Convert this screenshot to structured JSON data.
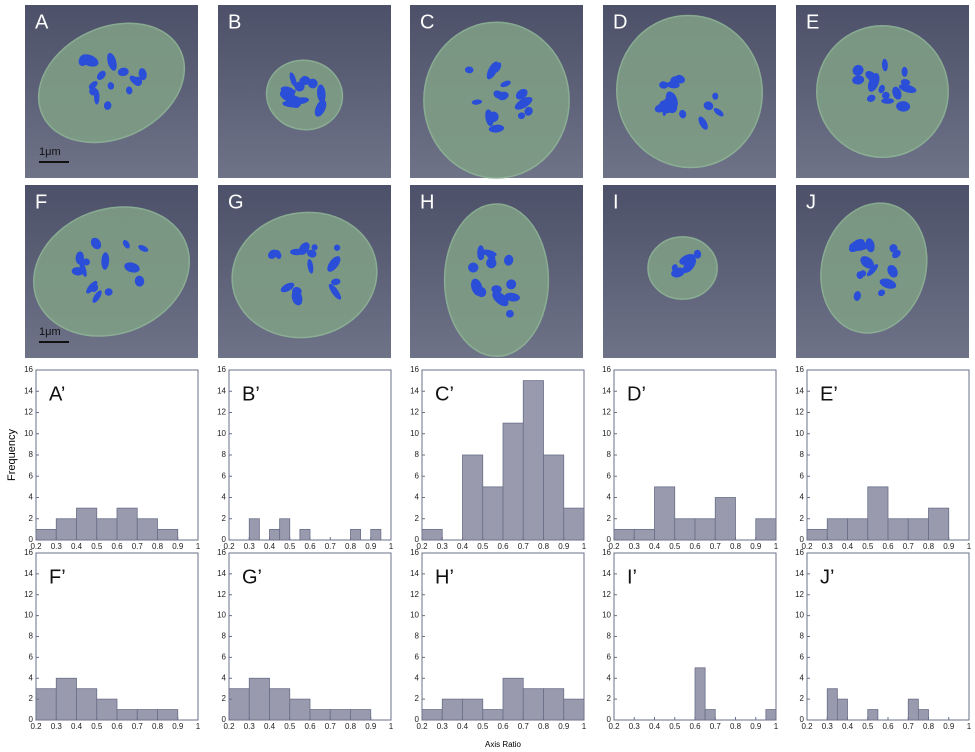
{
  "images": [
    {
      "label": "A",
      "scale_bar": "1μm"
    },
    {
      "label": "B"
    },
    {
      "label": "C"
    },
    {
      "label": "D"
    },
    {
      "label": "E"
    },
    {
      "label": "F",
      "scale_bar": "1μm"
    },
    {
      "label": "G"
    },
    {
      "label": "H"
    },
    {
      "label": "I"
    },
    {
      "label": "J"
    }
  ],
  "chart_data": [
    {
      "type": "histogram",
      "title": "A’",
      "y_label": "Frequency",
      "bins": [
        0.2,
        0.3,
        0.4,
        0.5,
        0.6,
        0.7,
        0.8,
        0.9,
        1
      ],
      "values": [
        1,
        2,
        3,
        2,
        3,
        2,
        1,
        0
      ],
      "color": "#9a9aae",
      "xlim": [
        0.2,
        1
      ],
      "ylim": [
        0,
        16
      ],
      "xticks": [
        0.2,
        0.3,
        0.4,
        0.5,
        0.6,
        0.7,
        0.8,
        0.9,
        1
      ],
      "yticks": [
        0,
        2,
        4,
        6,
        8,
        10,
        12,
        14,
        16
      ]
    },
    {
      "type": "histogram",
      "title": "B’",
      "bins": [
        0.2,
        0.25,
        0.3,
        0.35,
        0.4,
        0.45,
        0.5,
        0.55,
        0.6,
        0.65,
        0.7,
        0.75,
        0.8,
        0.85,
        0.9,
        0.95,
        1
      ],
      "values": [
        0,
        0,
        2,
        0,
        1,
        2,
        0,
        1,
        0,
        0,
        0,
        0,
        1,
        0,
        1,
        0
      ],
      "color": "#9a9aae",
      "xlim": [
        0.2,
        1
      ],
      "ylim": [
        0,
        16
      ],
      "xticks": [
        0.2,
        0.3,
        0.4,
        0.5,
        0.6,
        0.7,
        0.8,
        0.9,
        1
      ],
      "yticks": [
        0,
        2,
        4,
        6,
        8,
        10,
        12,
        14,
        16
      ]
    },
    {
      "type": "histogram",
      "title": "C’",
      "bins": [
        0.2,
        0.3,
        0.4,
        0.5,
        0.6,
        0.7,
        0.8,
        0.9,
        1
      ],
      "values": [
        1,
        0,
        8,
        5,
        11,
        15,
        8,
        3
      ],
      "color": "#9a9aae",
      "xlim": [
        0.2,
        1
      ],
      "ylim": [
        0,
        16
      ],
      "xticks": [
        0.2,
        0.3,
        0.4,
        0.5,
        0.6,
        0.7,
        0.8,
        0.9,
        1
      ],
      "yticks": [
        0,
        2,
        4,
        6,
        8,
        10,
        12,
        14,
        16
      ]
    },
    {
      "type": "histogram",
      "title": "D’",
      "bins": [
        0.2,
        0.3,
        0.4,
        0.5,
        0.6,
        0.7,
        0.8,
        0.9,
        1
      ],
      "values": [
        1,
        1,
        5,
        2,
        2,
        4,
        0,
        2
      ],
      "color": "#9a9aae",
      "xlim": [
        0.2,
        1
      ],
      "ylim": [
        0,
        16
      ],
      "xticks": [
        0.2,
        0.3,
        0.4,
        0.5,
        0.6,
        0.7,
        0.8,
        0.9,
        1
      ],
      "yticks": [
        0,
        2,
        4,
        6,
        8,
        10,
        12,
        14,
        16
      ]
    },
    {
      "type": "histogram",
      "title": "E’",
      "bins": [
        0.2,
        0.3,
        0.4,
        0.5,
        0.6,
        0.7,
        0.8,
        0.9,
        1
      ],
      "values": [
        1,
        2,
        2,
        5,
        2,
        2,
        3,
        0
      ],
      "color": "#9a9aae",
      "xlim": [
        0.2,
        1
      ],
      "ylim": [
        0,
        16
      ],
      "xticks": [
        0.2,
        0.3,
        0.4,
        0.5,
        0.6,
        0.7,
        0.8,
        0.9,
        1
      ],
      "yticks": [
        0,
        2,
        4,
        6,
        8,
        10,
        12,
        14,
        16
      ]
    },
    {
      "type": "histogram",
      "title": "F’",
      "bins": [
        0.2,
        0.3,
        0.4,
        0.5,
        0.6,
        0.7,
        0.8,
        0.9,
        1
      ],
      "values": [
        3,
        4,
        3,
        2,
        1,
        1,
        1,
        0
      ],
      "color": "#9a9aae",
      "xlim": [
        0.2,
        1
      ],
      "ylim": [
        0,
        16
      ],
      "xticks": [
        0.2,
        0.3,
        0.4,
        0.5,
        0.6,
        0.7,
        0.8,
        0.9,
        1
      ],
      "yticks": [
        0,
        2,
        4,
        6,
        8,
        10,
        12,
        14,
        16
      ]
    },
    {
      "type": "histogram",
      "title": "G’",
      "bins": [
        0.2,
        0.3,
        0.4,
        0.5,
        0.6,
        0.7,
        0.8,
        0.9,
        1
      ],
      "values": [
        3,
        4,
        3,
        2,
        1,
        1,
        1,
        0
      ],
      "color": "#9a9aae",
      "xlim": [
        0.2,
        1
      ],
      "ylim": [
        0,
        16
      ],
      "xticks": [
        0.2,
        0.3,
        0.4,
        0.5,
        0.6,
        0.7,
        0.8,
        0.9,
        1
      ],
      "yticks": [
        0,
        2,
        4,
        6,
        8,
        10,
        12,
        14,
        16
      ]
    },
    {
      "type": "histogram",
      "title": "H’",
      "x_label": "Axis Ratio",
      "bins": [
        0.2,
        0.3,
        0.4,
        0.5,
        0.6,
        0.7,
        0.8,
        0.9,
        1
      ],
      "values": [
        1,
        2,
        2,
        1,
        4,
        3,
        3,
        2
      ],
      "color": "#9a9aae",
      "xlim": [
        0.2,
        1
      ],
      "ylim": [
        0,
        16
      ],
      "xticks": [
        0.2,
        0.3,
        0.4,
        0.5,
        0.6,
        0.7,
        0.8,
        0.9,
        1
      ],
      "yticks": [
        0,
        2,
        4,
        6,
        8,
        10,
        12,
        14,
        16
      ]
    },
    {
      "type": "histogram",
      "title": "I’",
      "bins": [
        0.2,
        0.25,
        0.3,
        0.35,
        0.4,
        0.45,
        0.5,
        0.55,
        0.6,
        0.65,
        0.7,
        0.75,
        0.8,
        0.85,
        0.9,
        0.95,
        1
      ],
      "values": [
        0,
        0,
        0,
        0,
        0,
        0,
        0,
        0,
        5,
        1,
        0,
        0,
        0,
        0,
        0,
        1
      ],
      "color": "#9a9aae",
      "xlim": [
        0.2,
        1
      ],
      "ylim": [
        0,
        16
      ],
      "xticks": [
        0.2,
        0.3,
        0.4,
        0.5,
        0.6,
        0.7,
        0.8,
        0.9,
        1
      ],
      "yticks": [
        0,
        2,
        4,
        6,
        8,
        10,
        12,
        14,
        16
      ]
    },
    {
      "type": "histogram",
      "title": "J’",
      "bins": [
        0.2,
        0.25,
        0.3,
        0.35,
        0.4,
        0.45,
        0.5,
        0.55,
        0.6,
        0.65,
        0.7,
        0.75,
        0.8,
        0.85,
        0.9,
        0.95,
        1
      ],
      "values": [
        0,
        0,
        3,
        2,
        0,
        0,
        1,
        0,
        0,
        0,
        2,
        1,
        0,
        0,
        0,
        0
      ],
      "color": "#9a9aae",
      "xlim": [
        0.2,
        1
      ],
      "ylim": [
        0,
        16
      ],
      "xticks": [
        0.2,
        0.3,
        0.4,
        0.5,
        0.6,
        0.7,
        0.8,
        0.9,
        1
      ],
      "yticks": [
        0,
        2,
        4,
        6,
        8,
        10,
        12,
        14,
        16
      ]
    }
  ]
}
